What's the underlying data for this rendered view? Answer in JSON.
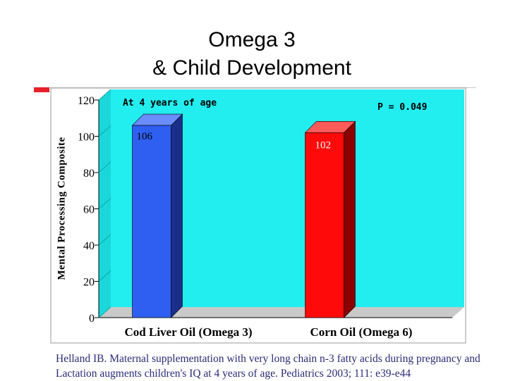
{
  "slide": {
    "title_line1": "Omega 3",
    "title_line2": "& Child Development",
    "citation_line1": "Helland IB. Maternal supplementation with very long chain n-3 fatty acids during pregnancy and",
    "citation_line2": "Lactation augments children's IQ at 4 years of age. Pediatrics 2003; 111: e39-e44"
  },
  "chart_data": {
    "type": "bar",
    "title": "",
    "annotations": [
      "At 4 years of age",
      "P = 0.049"
    ],
    "categories": [
      "Cod Liver Oil (Omega 3)",
      "Corn Oil (Omega 6)"
    ],
    "values": [
      106,
      102
    ],
    "data_labels": [
      "106",
      "102"
    ],
    "bar_colors": [
      "#2f5ff0",
      "#ff0a0a"
    ],
    "xlabel": "",
    "ylabel": "Mental Processing Composite",
    "ylim": [
      0,
      120
    ],
    "yticks": [
      0,
      20,
      40,
      60,
      80,
      100,
      120
    ],
    "grid": false,
    "plot_background": "#22eef0"
  }
}
